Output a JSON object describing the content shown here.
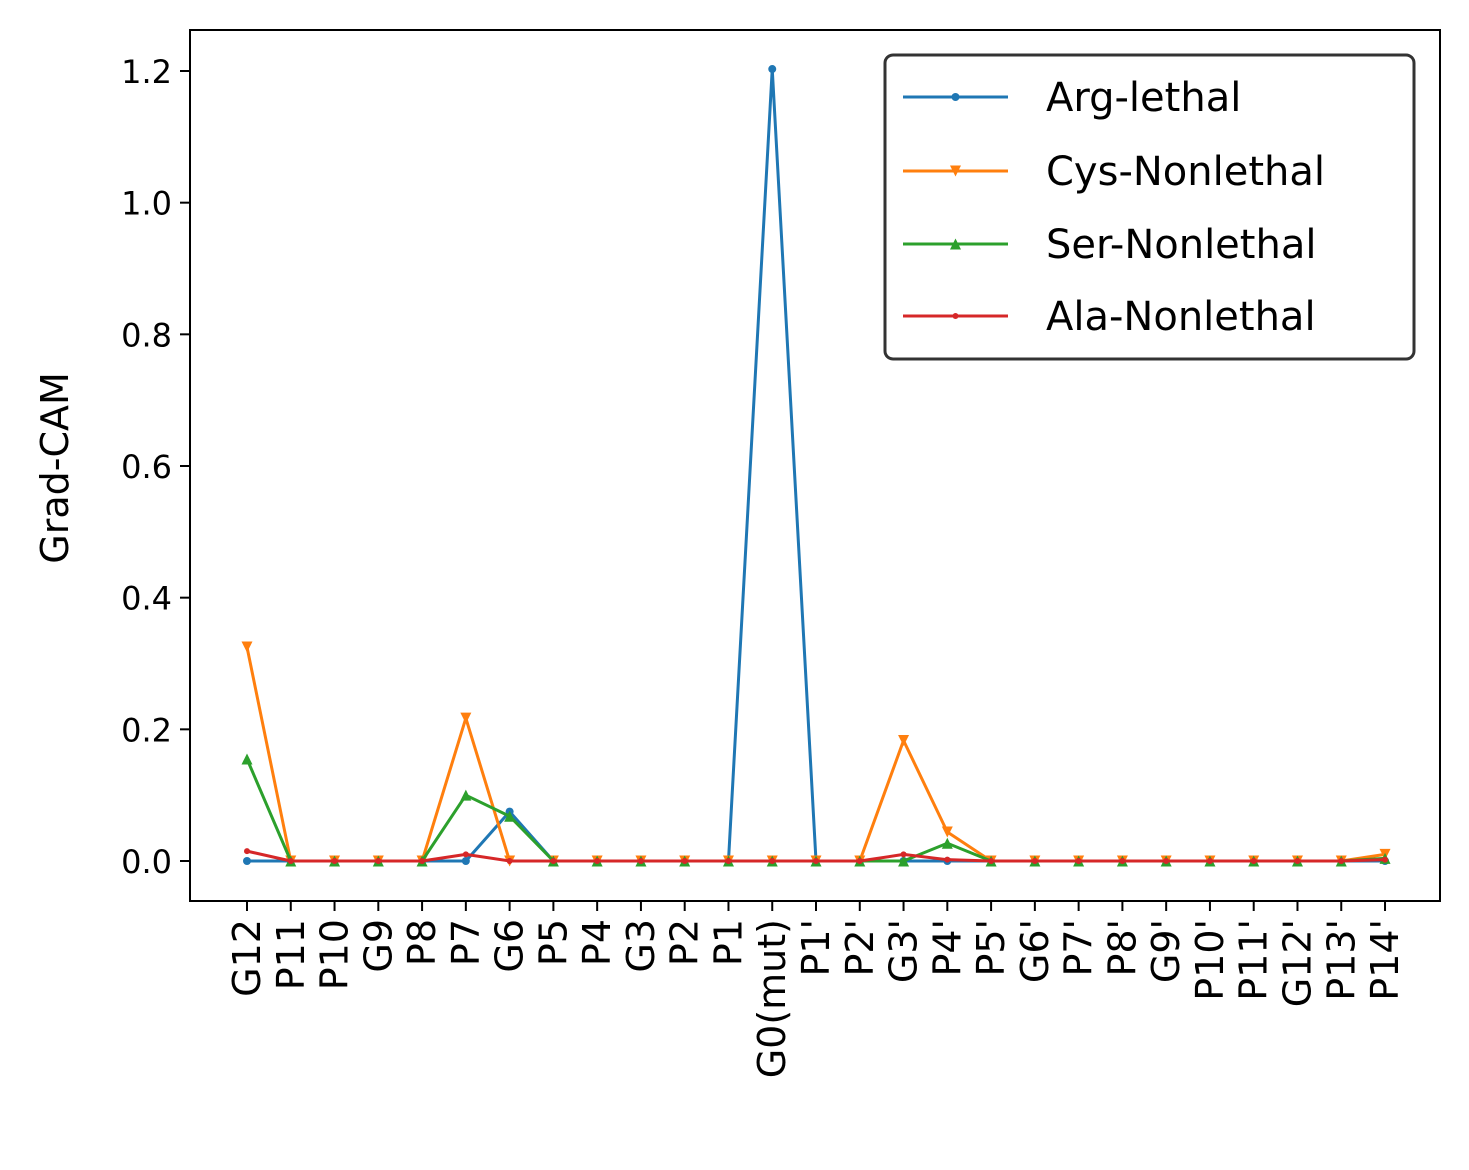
{
  "chart_data": {
    "type": "line",
    "title": "",
    "xlabel": "",
    "ylabel": "Grad-CAM",
    "ylim": [
      -0.06,
      1.265
    ],
    "yticks": [
      "0.0",
      "0.2",
      "0.4",
      "0.6",
      "0.8",
      "1.0",
      "1.2"
    ],
    "ytick_values": [
      0.0,
      0.2,
      0.4,
      0.6,
      0.8,
      1.0,
      1.2
    ],
    "categories": [
      "G12",
      "P11",
      "P10",
      "G9",
      "P8",
      "P7",
      "G6",
      "P5",
      "P4",
      "G3",
      "P2",
      "P1",
      "G0(mut)",
      "P1'",
      "P2'",
      "G3'",
      "P4'",
      "P5'",
      "G6'",
      "P7'",
      "P8'",
      "G9'",
      "P10'",
      "P11'",
      "G12'",
      "P13'",
      "P14'"
    ],
    "grid": false,
    "legend_position": "top-right",
    "series": [
      {
        "name": "Arg-lethal",
        "color": "#1f77b4",
        "marker": "circle",
        "values": [
          0,
          0,
          0,
          0,
          0,
          0,
          0.075,
          0,
          0,
          0,
          0,
          0,
          1.203,
          0,
          0,
          0,
          0,
          0,
          0,
          0,
          0,
          0,
          0,
          0,
          0,
          0,
          0
        ]
      },
      {
        "name": "Cys-Nonlethal",
        "color": "#ff7f0e",
        "marker": "triangle-down",
        "values": [
          0.325,
          0,
          0,
          0,
          0,
          0.217,
          0,
          0,
          0,
          0,
          0,
          0,
          0,
          0,
          0,
          0.183,
          0.044,
          0,
          0,
          0,
          0,
          0,
          0,
          0,
          0,
          0,
          0.01
        ]
      },
      {
        "name": "Ser-Nonlethal",
        "color": "#2ca02c",
        "marker": "triangle-up",
        "values": [
          0.155,
          0,
          0,
          0,
          0,
          0.1,
          0.068,
          0,
          0,
          0,
          0,
          0,
          0,
          0,
          0,
          0,
          0.027,
          0,
          0,
          0,
          0,
          0,
          0,
          0,
          0,
          0,
          0.004
        ]
      },
      {
        "name": "Ala-Nonlethal",
        "color": "#d62728",
        "marker": "circle",
        "values": [
          0.015,
          0,
          0,
          0,
          0,
          0.01,
          0,
          0,
          0,
          0,
          0,
          0,
          0,
          0,
          0,
          0.01,
          0.002,
          0,
          0,
          0,
          0,
          0,
          0,
          0,
          0,
          0,
          0.002
        ]
      }
    ]
  }
}
